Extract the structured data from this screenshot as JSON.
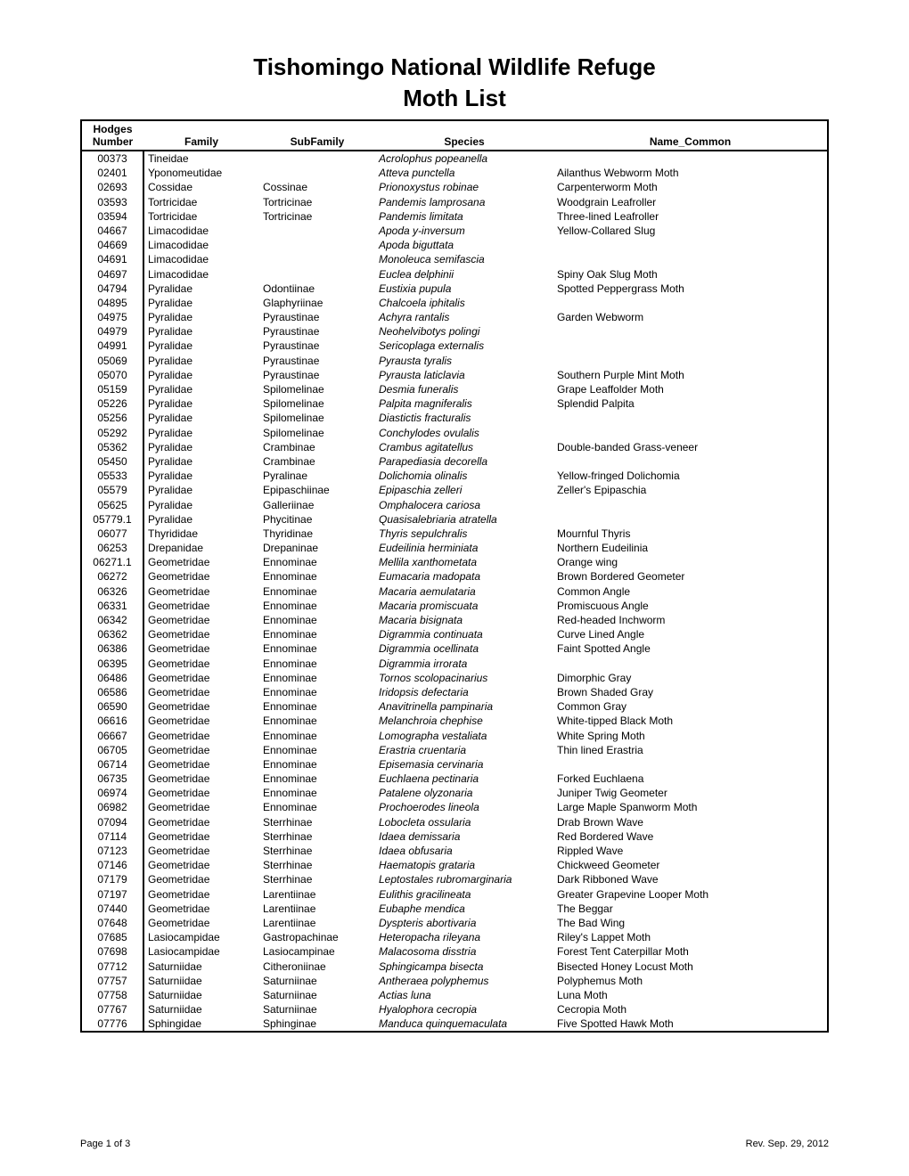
{
  "title": "Tishomingo National Wildlife Refuge",
  "subtitle": "Moth List",
  "columns": {
    "number_line1": "Hodges",
    "number_line2": "Number",
    "family": "Family",
    "subfamily": "SubFamily",
    "species": "Species",
    "common": "Name_Common"
  },
  "footer": {
    "page": "Page 1 of 3",
    "rev": "Rev. Sep. 29, 2012"
  },
  "rows": [
    {
      "number": "00373",
      "family": "Tineidae",
      "subfamily": "",
      "species": "Acrolophus popeanella",
      "common": ""
    },
    {
      "number": "02401",
      "family": "Yponomeutidae",
      "subfamily": "",
      "species": "Atteva punctella",
      "common": "Ailanthus  Webworm Moth"
    },
    {
      "number": "02693",
      "family": "Cossidae",
      "subfamily": "Cossinae",
      "species": "Prionoxystus robinae",
      "common": "Carpenterworm Moth"
    },
    {
      "number": "03593",
      "family": "Tortricidae",
      "subfamily": "Tortricinae",
      "species": "Pandemis lamprosana",
      "common": "Woodgrain Leafroller"
    },
    {
      "number": "03594",
      "family": "Tortricidae",
      "subfamily": "Tortricinae",
      "species": "Pandemis limitata",
      "common": "Three-lined Leafroller"
    },
    {
      "number": "04667",
      "family": "Limacodidae",
      "subfamily": "",
      "species": "Apoda y-inversum",
      "common": "Yellow-Collared Slug"
    },
    {
      "number": "04669",
      "family": "Limacodidae",
      "subfamily": "",
      "species": "Apoda biguttata",
      "common": ""
    },
    {
      "number": "04691",
      "family": "Limacodidae",
      "subfamily": "",
      "species": "Monoleuca semifascia",
      "common": ""
    },
    {
      "number": "04697",
      "family": "Limacodidae",
      "subfamily": "",
      "species": "Euclea delphinii",
      "common": "Spiny Oak Slug Moth"
    },
    {
      "number": "04794",
      "family": "Pyralidae",
      "subfamily": "Odontiinae",
      "species": "Eustixia pupula",
      "common": "Spotted Peppergrass Moth"
    },
    {
      "number": "04895",
      "family": "Pyralidae",
      "subfamily": "Glaphyriinae",
      "species": "Chalcoela iphitalis",
      "common": ""
    },
    {
      "number": "04975",
      "family": "Pyralidae",
      "subfamily": "Pyraustinae",
      "species": "Achyra rantalis",
      "common": "Garden Webworm"
    },
    {
      "number": "04979",
      "family": "Pyralidae",
      "subfamily": "Pyraustinae",
      "species": "Neohelvibotys polingi",
      "common": ""
    },
    {
      "number": "04991",
      "family": "Pyralidae",
      "subfamily": "Pyraustinae",
      "species": "Sericoplaga externalis",
      "common": ""
    },
    {
      "number": "05069",
      "family": "Pyralidae",
      "subfamily": "Pyraustinae",
      "species": "Pyrausta tyralis",
      "common": ""
    },
    {
      "number": "05070",
      "family": "Pyralidae",
      "subfamily": "Pyraustinae",
      "species": "Pyrausta laticlavia",
      "common": "Southern Purple Mint Moth"
    },
    {
      "number": "05159",
      "family": "Pyralidae",
      "subfamily": "Spilomelinae",
      "species": "Desmia funeralis",
      "common": "Grape Leaffolder Moth"
    },
    {
      "number": "05226",
      "family": "Pyralidae",
      "subfamily": "Spilomelinae",
      "species": "Palpita magniferalis",
      "common": "Splendid Palpita"
    },
    {
      "number": "05256",
      "family": "Pyralidae",
      "subfamily": "Spilomelinae",
      "species": "Diastictis fracturalis",
      "common": ""
    },
    {
      "number": "05292",
      "family": "Pyralidae",
      "subfamily": "Spilomelinae",
      "species": "Conchylodes ovulalis",
      "common": ""
    },
    {
      "number": "05362",
      "family": "Pyralidae",
      "subfamily": "Crambinae",
      "species": "Crambus agitatellus",
      "common": "Double-banded Grass-veneer"
    },
    {
      "number": "05450",
      "family": "Pyralidae",
      "subfamily": "Crambinae",
      "species": "Parapediasia decorella",
      "common": ""
    },
    {
      "number": "05533",
      "family": "Pyralidae",
      "subfamily": "Pyralinae",
      "species": "Dolichomia olinalis",
      "common": "Yellow-fringed Dolichomia"
    },
    {
      "number": "05579",
      "family": "Pyralidae",
      "subfamily": "Epipaschiinae",
      "species": "Epipaschia zelleri",
      "common": "Zeller's Epipaschia"
    },
    {
      "number": "05625",
      "family": "Pyralidae",
      "subfamily": "Galleriinae",
      "species": "Omphalocera cariosa",
      "common": ""
    },
    {
      "number": "05779.1",
      "family": "Pyralidae",
      "subfamily": "Phycitinae",
      "species": "Quasisalebriaria atratella",
      "common": ""
    },
    {
      "number": "06077",
      "family": "Thyrididae",
      "subfamily": "Thyridinae",
      "species": "Thyris sepulchralis",
      "common": "Mournful Thyris"
    },
    {
      "number": "06253",
      "family": "Drepanidae",
      "subfamily": "Drepaninae",
      "species": "Eudeilinia herminiata",
      "common": "Northern Eudeilinia"
    },
    {
      "number": "06271.1",
      "family": "Geometridae",
      "subfamily": "Ennominae",
      "species": "Mellila xanthometata",
      "common": "Orange wing"
    },
    {
      "number": "06272",
      "family": "Geometridae",
      "subfamily": "Ennominae",
      "species": "Eumacaria madopata",
      "common": "Brown Bordered Geometer"
    },
    {
      "number": "06326",
      "family": "Geometridae",
      "subfamily": "Ennominae",
      "species": "Macaria aemulataria",
      "common": "Common Angle"
    },
    {
      "number": "06331",
      "family": "Geometridae",
      "subfamily": "Ennominae",
      "species": "Macaria promiscuata",
      "common": "Promiscuous Angle"
    },
    {
      "number": "06342",
      "family": "Geometridae",
      "subfamily": "Ennominae",
      "species": "Macaria bisignata",
      "common": "Red-headed Inchworm"
    },
    {
      "number": "06362",
      "family": "Geometridae",
      "subfamily": "Ennominae",
      "species": "Digrammia continuata",
      "common": "Curve Lined Angle"
    },
    {
      "number": "06386",
      "family": "Geometridae",
      "subfamily": "Ennominae",
      "species": "Digrammia ocellinata",
      "common": "Faint Spotted Angle"
    },
    {
      "number": "06395",
      "family": "Geometridae",
      "subfamily": "Ennominae",
      "species": "Digrammia irrorata",
      "common": ""
    },
    {
      "number": "06486",
      "family": "Geometridae",
      "subfamily": "Ennominae",
      "species": "Tornos scolopacinarius",
      "common": "Dimorphic Gray"
    },
    {
      "number": "06586",
      "family": "Geometridae",
      "subfamily": "Ennominae",
      "species": "Iridopsis defectaria",
      "common": "Brown Shaded Gray"
    },
    {
      "number": "06590",
      "family": "Geometridae",
      "subfamily": "Ennominae",
      "species": "Anavitrinella pampinaria",
      "common": "Common Gray"
    },
    {
      "number": "06616",
      "family": "Geometridae",
      "subfamily": "Ennominae",
      "species": "Melanchroia chephise",
      "common": "White-tipped Black Moth"
    },
    {
      "number": "06667",
      "family": "Geometridae",
      "subfamily": "Ennominae",
      "species": "Lomographa vestaliata",
      "common": "White Spring Moth"
    },
    {
      "number": "06705",
      "family": "Geometridae",
      "subfamily": "Ennominae",
      "species": "Erastria cruentaria",
      "common": "Thin lined Erastria"
    },
    {
      "number": "06714",
      "family": "Geometridae",
      "subfamily": "Ennominae",
      "species": "Episemasia cervinaria",
      "common": ""
    },
    {
      "number": "06735",
      "family": "Geometridae",
      "subfamily": "Ennominae",
      "species": "Euchlaena pectinaria",
      "common": "Forked Euchlaena"
    },
    {
      "number": "06974",
      "family": "Geometridae",
      "subfamily": "Ennominae",
      "species": "Patalene olyzonaria",
      "common": "Juniper Twig Geometer"
    },
    {
      "number": "06982",
      "family": "Geometridae",
      "subfamily": "Ennominae",
      "species": "Prochoerodes lineola",
      "common": "Large Maple Spanworm Moth"
    },
    {
      "number": "07094",
      "family": "Geometridae",
      "subfamily": "Sterrhinae",
      "species": "Lobocleta ossularia",
      "common": "Drab Brown Wave"
    },
    {
      "number": "07114",
      "family": "Geometridae",
      "subfamily": "Sterrhinae",
      "species": "Idaea demissaria",
      "common": "Red Bordered Wave"
    },
    {
      "number": "07123",
      "family": "Geometridae",
      "subfamily": "Sterrhinae",
      "species": "Idaea obfusaria",
      "common": "Rippled Wave"
    },
    {
      "number": "07146",
      "family": "Geometridae",
      "subfamily": "Sterrhinae",
      "species": "Haematopis grataria",
      "common": "Chickweed Geometer"
    },
    {
      "number": "07179",
      "family": "Geometridae",
      "subfamily": "Sterrhinae",
      "species": "Leptostales rubromarginaria",
      "common": "Dark Ribboned Wave"
    },
    {
      "number": "07197",
      "family": "Geometridae",
      "subfamily": "Larentiinae",
      "species": "Eulithis gracilineata",
      "common": "Greater Grapevine Looper Moth"
    },
    {
      "number": "07440",
      "family": "Geometridae",
      "subfamily": "Larentiinae",
      "species": "Eubaphe mendica",
      "common": "The Beggar"
    },
    {
      "number": "07648",
      "family": "Geometridae",
      "subfamily": "Larentiinae",
      "species": "Dyspteris abortivaria",
      "common": "The Bad Wing"
    },
    {
      "number": "07685",
      "family": "Lasiocampidae",
      "subfamily": "Gastropachinae",
      "species": "Heteropacha rileyana",
      "common": "Riley's Lappet Moth"
    },
    {
      "number": "07698",
      "family": "Lasiocampidae",
      "subfamily": "Lasiocampinae",
      "species": "Malacosoma disstria",
      "common": "Forest Tent Caterpillar Moth"
    },
    {
      "number": "07712",
      "family": "Saturniidae",
      "subfamily": "Citheroniinae",
      "species": "Sphingicampa bisecta",
      "common": "Bisected Honey Locust Moth"
    },
    {
      "number": "07757",
      "family": "Saturniidae",
      "subfamily": "Saturniinae",
      "species": "Antheraea polyphemus",
      "common": "Polyphemus Moth"
    },
    {
      "number": "07758",
      "family": "Saturniidae",
      "subfamily": "Saturniinae",
      "species": "Actias luna",
      "common": "Luna Moth"
    },
    {
      "number": "07767",
      "family": "Saturniidae",
      "subfamily": "Saturniinae",
      "species": "Hyalophora cecropia",
      "common": "Cecropia Moth"
    },
    {
      "number": "07776",
      "family": "Sphingidae",
      "subfamily": "Sphinginae",
      "species": "Manduca quinquemaculata",
      "common": "Five Spotted Hawk Moth"
    }
  ]
}
